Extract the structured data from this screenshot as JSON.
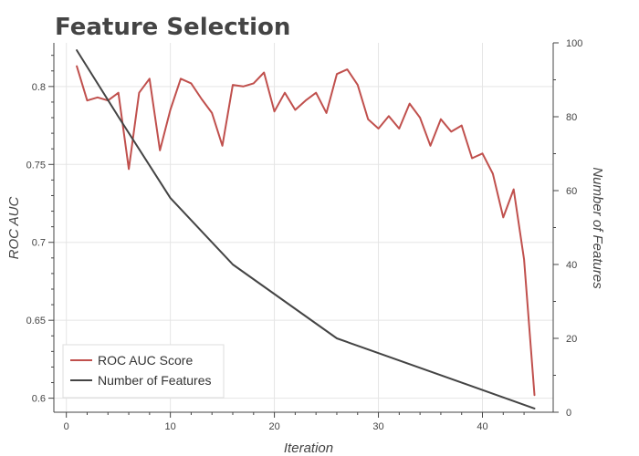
{
  "chart_data": {
    "type": "line",
    "title": "Feature Selection",
    "xlabel": "Iteration",
    "ylabel": "ROC AUC",
    "y2label": "Number of Features",
    "xlim": [
      -1.2,
      46.8
    ],
    "ylim": [
      0.591,
      0.828
    ],
    "y2lim": [
      0,
      100
    ],
    "xticks": [
      0,
      10,
      20,
      30,
      40
    ],
    "yticks": [
      0.6,
      0.65,
      0.7,
      0.75,
      0.8
    ],
    "y2ticks": [
      0,
      20,
      40,
      60,
      80,
      100
    ],
    "grid": true,
    "legend_position": "bottom-left",
    "series": [
      {
        "name": "ROC AUC Score",
        "axis": "left",
        "color": "#c0504d",
        "x": [
          1,
          2,
          3,
          4,
          5,
          6,
          7,
          8,
          9,
          10,
          11,
          12,
          13,
          14,
          15,
          16,
          17,
          18,
          19,
          20,
          21,
          22,
          23,
          24,
          25,
          26,
          27,
          28,
          29,
          30,
          31,
          32,
          33,
          34,
          35,
          36,
          37,
          38,
          39,
          40,
          41,
          42,
          43,
          44,
          45
        ],
        "values": [
          0.813,
          0.791,
          0.793,
          0.791,
          0.796,
          0.747,
          0.796,
          0.805,
          0.759,
          0.785,
          0.805,
          0.802,
          0.792,
          0.783,
          0.762,
          0.801,
          0.8,
          0.802,
          0.809,
          0.784,
          0.796,
          0.785,
          0.791,
          0.796,
          0.783,
          0.808,
          0.811,
          0.801,
          0.779,
          0.773,
          0.781,
          0.773,
          0.789,
          0.78,
          0.762,
          0.779,
          0.771,
          0.775,
          0.754,
          0.757,
          0.744,
          0.716,
          0.734,
          0.689,
          0.602
        ]
      },
      {
        "name": "Number of Features",
        "axis": "right",
        "color": "#444444",
        "x": [
          1,
          5,
          10,
          16,
          26,
          45
        ],
        "values": [
          98,
          80,
          58,
          40,
          20,
          1
        ]
      }
    ]
  }
}
